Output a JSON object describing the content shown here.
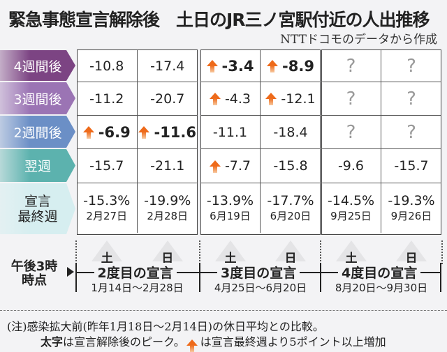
{
  "title": "緊急事態宣言解除後　土日のJR三ノ宮駅付近の人出推移",
  "source": "NTTドコモのデータから作成",
  "rows": [
    {
      "label": "4週間後",
      "color": "#7c4483",
      "text_color": "#ffffff",
      "cells": [
        {
          "v": "-10.8"
        },
        {
          "v": "-17.4"
        },
        {
          "v": "-3.4",
          "bold": true,
          "arrow": true
        },
        {
          "v": "-8.9",
          "bold": true,
          "arrow": true
        },
        {
          "v": "?",
          "q": true
        },
        {
          "v": "?",
          "q": true
        }
      ]
    },
    {
      "label": "3週間後",
      "color": "#9b74b4",
      "text_color": "#ffffff",
      "cells": [
        {
          "v": "-11.2"
        },
        {
          "v": "-20.7"
        },
        {
          "v": "-4.3",
          "arrow": true
        },
        {
          "v": "-12.1",
          "arrow": true
        },
        {
          "v": "?",
          "q": true
        },
        {
          "v": "?",
          "q": true
        }
      ]
    },
    {
      "label": "2週間後",
      "color": "#6b8fc6",
      "text_color": "#ffffff",
      "cells": [
        {
          "v": "-6.9",
          "bold": true,
          "arrow": true
        },
        {
          "v": "-11.6",
          "bold": true,
          "arrow": true
        },
        {
          "v": "-11.1"
        },
        {
          "v": "-18.4"
        },
        {
          "v": "?",
          "q": true
        },
        {
          "v": "?",
          "q": true
        }
      ]
    },
    {
      "label": "翌週",
      "color": "#5cb2ae",
      "text_color": "#ffffff",
      "cells": [
        {
          "v": "-15.7"
        },
        {
          "v": "-21.1"
        },
        {
          "v": "-7.7",
          "arrow": true
        },
        {
          "v": "-15.8"
        },
        {
          "v": "-9.6"
        },
        {
          "v": "-15.7"
        }
      ]
    }
  ],
  "last_week": {
    "label1": "宣言",
    "label2": "最終週",
    "color": "#d6eef0",
    "cells": [
      {
        "v": "-15.3%",
        "d": "2月27日"
      },
      {
        "v": "-19.9%",
        "d": "2月28日"
      },
      {
        "v": "-13.9%",
        "d": "6月19日"
      },
      {
        "v": "-17.7%",
        "d": "6月20日"
      },
      {
        "v": "-14.5%",
        "d": "9月25日"
      },
      {
        "v": "-19.3%",
        "d": "9月26日"
      }
    ]
  },
  "days": [
    "土",
    "日",
    "土",
    "日",
    "土",
    "日"
  ],
  "time_label1": "午後3時",
  "time_label2": "時点",
  "groups": [
    {
      "name": "2度目の宣言",
      "dates": "1月14日～2月28日"
    },
    {
      "name": "3度目の宣言",
      "dates": "4月25日～6月20日"
    },
    {
      "name": "4度目の宣言",
      "dates": "8月20日～9月30日"
    }
  ],
  "note1": "(注)感染拡大前(昨年1月18日～2月14日)の休日平均との比較。",
  "note2_bold": "太字",
  "note2a": "は宣言解除後のピーク。",
  "note2b": "は宣言最終週より5ポイント以上増加",
  "arrow_color": "#ee6a1a"
}
